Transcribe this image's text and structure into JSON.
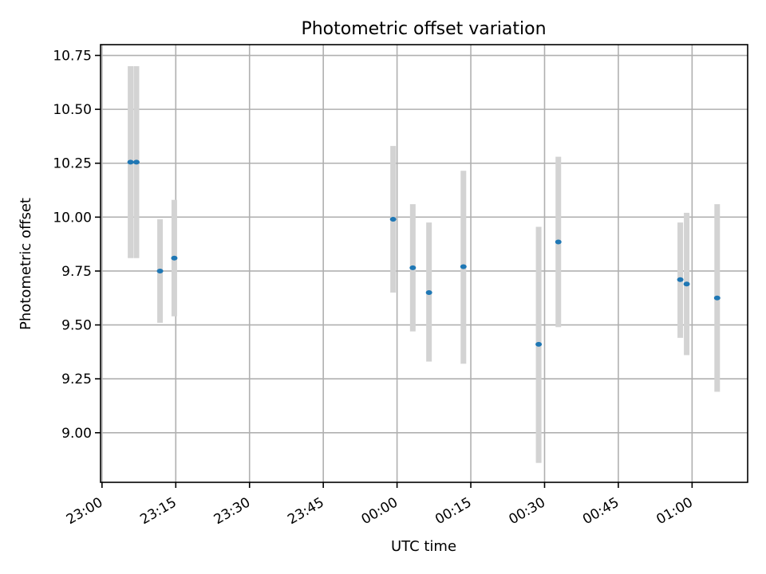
{
  "chart_data": {
    "type": "scatter",
    "title": "Photometric offset variation",
    "xlabel": "UTC time",
    "ylabel": "Photometric offset",
    "x_ticks": [
      "23:00",
      "23:15",
      "23:30",
      "23:45",
      "00:00",
      "00:15",
      "00:30",
      "00:45",
      "01:00"
    ],
    "x_tick_minutes": [
      0,
      15,
      30,
      45,
      60,
      75,
      90,
      105,
      120
    ],
    "xlim_minutes": [
      -0.3,
      131.3
    ],
    "y_ticks": [
      "9.00",
      "9.25",
      "9.50",
      "9.75",
      "10.00",
      "10.25",
      "10.50",
      "10.75"
    ],
    "y_tick_values": [
      9.0,
      9.25,
      9.5,
      9.75,
      10.0,
      10.25,
      10.5,
      10.75
    ],
    "ylim": [
      8.77,
      10.8
    ],
    "grid": true,
    "x_unit": "minutes after 23:00 UTC",
    "points": [
      {
        "x": 5.8,
        "y": 10.255,
        "err_low": 9.81,
        "err_high": 10.7
      },
      {
        "x": 7.0,
        "y": 10.255,
        "err_low": 9.81,
        "err_high": 10.7
      },
      {
        "x": 11.8,
        "y": 9.75,
        "err_low": 9.51,
        "err_high": 9.99
      },
      {
        "x": 14.7,
        "y": 9.81,
        "err_low": 9.54,
        "err_high": 10.08
      },
      {
        "x": 59.2,
        "y": 9.99,
        "err_low": 9.65,
        "err_high": 10.33
      },
      {
        "x": 63.2,
        "y": 9.765,
        "err_low": 9.47,
        "err_high": 10.06
      },
      {
        "x": 66.5,
        "y": 9.65,
        "err_low": 9.33,
        "err_high": 9.975
      },
      {
        "x": 73.5,
        "y": 9.77,
        "err_low": 9.32,
        "err_high": 10.215
      },
      {
        "x": 88.8,
        "y": 9.41,
        "err_low": 8.86,
        "err_high": 9.955
      },
      {
        "x": 92.8,
        "y": 9.885,
        "err_low": 9.49,
        "err_high": 10.28
      },
      {
        "x": 117.6,
        "y": 9.71,
        "err_low": 9.44,
        "err_high": 9.975
      },
      {
        "x": 118.9,
        "y": 9.69,
        "err_low": 9.36,
        "err_high": 10.02
      },
      {
        "x": 125.1,
        "y": 9.625,
        "err_low": 9.19,
        "err_high": 10.06
      }
    ],
    "colors": {
      "point": "#1f77b4",
      "errorbar": "#d3d3d3"
    }
  }
}
